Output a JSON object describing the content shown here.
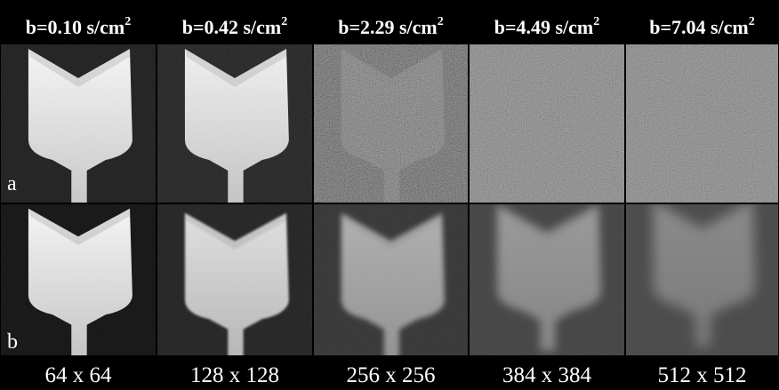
{
  "figure": {
    "headers": [
      {
        "text": "b=0.10 s/cm",
        "sup": "2"
      },
      {
        "text": "b=0.42 s/cm",
        "sup": "2"
      },
      {
        "text": "b=2.29 s/cm",
        "sup": "2"
      },
      {
        "text": "b=4.49 s/cm",
        "sup": "2"
      },
      {
        "text": "b=7.04 s/cm",
        "sup": "2"
      }
    ],
    "row_labels": [
      "a",
      "b"
    ],
    "footers": [
      "64 x 64",
      "128 x 128",
      "256 x 256",
      "384 x 384",
      "512 x 512"
    ]
  }
}
